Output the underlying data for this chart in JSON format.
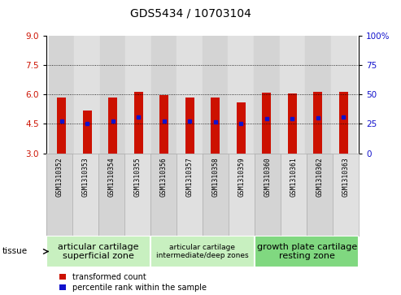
{
  "title": "GDS5434 / 10703104",
  "samples": [
    "GSM1310352",
    "GSM1310353",
    "GSM1310354",
    "GSM1310355",
    "GSM1310356",
    "GSM1310357",
    "GSM1310358",
    "GSM1310359",
    "GSM1310360",
    "GSM1310361",
    "GSM1310362",
    "GSM1310363"
  ],
  "bar_tops": [
    5.85,
    5.2,
    5.85,
    6.15,
    5.95,
    5.85,
    5.85,
    5.6,
    6.1,
    6.05,
    6.15,
    6.15
  ],
  "blue_dots": [
    4.65,
    4.5,
    4.65,
    4.85,
    4.65,
    4.65,
    4.6,
    4.5,
    4.75,
    4.75,
    4.8,
    4.85
  ],
  "bar_bottom": 3.0,
  "ylim_left": [
    3.0,
    9.0
  ],
  "yticks_left": [
    3,
    4.5,
    6,
    7.5,
    9
  ],
  "ylim_right": [
    0,
    100
  ],
  "yticks_right": [
    0,
    25,
    50,
    75,
    100
  ],
  "bar_color": "#cc1100",
  "dot_color": "#1111cc",
  "bar_width": 0.35,
  "gridlines": [
    4.5,
    6.0,
    7.5
  ],
  "groups": [
    {
      "label": "articular cartilage\nsuperficial zone",
      "start": 0,
      "end": 4,
      "color": "#c8f0c0",
      "fontsize": 8
    },
    {
      "label": "articular cartilage\nintermediate/deep zones",
      "start": 4,
      "end": 8,
      "color": "#c8f0c0",
      "fontsize": 6.5
    },
    {
      "label": "growth plate cartilage\nresting zone",
      "start": 8,
      "end": 12,
      "color": "#80d880",
      "fontsize": 8
    }
  ],
  "legend_red": "transformed count",
  "legend_blue": "percentile rank within the sample",
  "tissue_label": "tissue",
  "title_fontsize": 10
}
